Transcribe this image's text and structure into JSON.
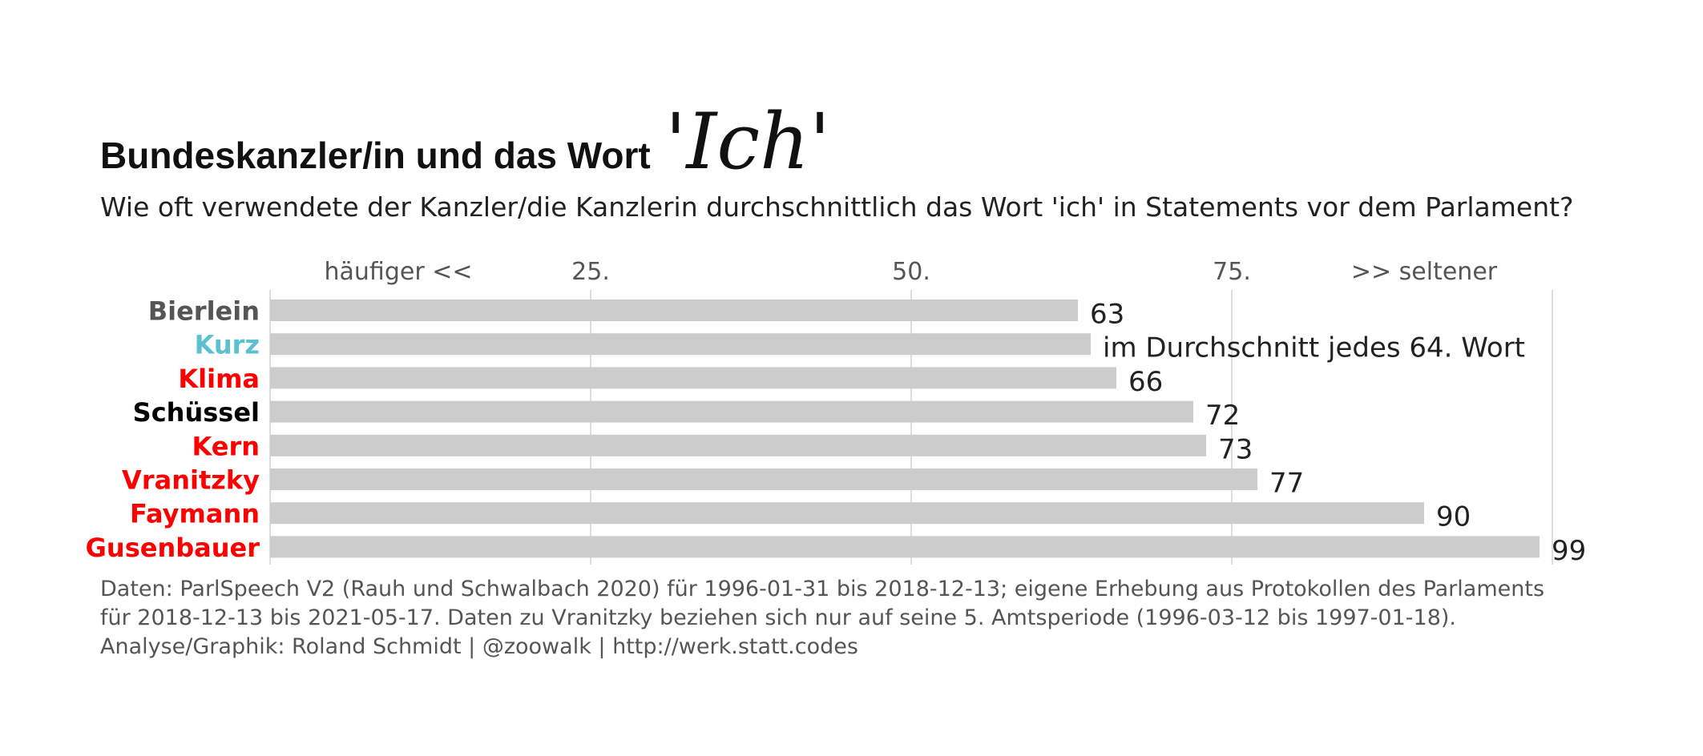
{
  "header": {
    "title": "Bundeskanzler/in und das Wort",
    "title_word": "'Ich'",
    "subtitle": "Wie oft verwendete der Kanzler/die Kanzlerin durchschnittlich das Wort 'ich' in Statements vor dem Parlament?"
  },
  "caption": {
    "line1": "Daten: ParlSpeech V2 (Rauh und Schwalbach 2020) für 1996-01-31 bis 2018-12-13; eigene Erhebung aus Protokollen des Parlaments",
    "line2": "für 2018-12-13 bis 2021-05-17. Daten zu Vranitzky beziehen sich nur auf seine 5. Amtsperiode (1996-03-12 bis 1997-01-18).",
    "line3": "Analyse/Graphik: Roland Schmidt | @zoowalk | http://werk.statt.codes"
  },
  "chart_data": {
    "type": "bar",
    "orientation": "horizontal",
    "categories": [
      "Bierlein",
      "Kurz",
      "Klima",
      "Schüssel",
      "Kern",
      "Vranitzky",
      "Faymann",
      "Gusenbauer"
    ],
    "values": [
      63,
      64,
      66,
      72,
      73,
      77,
      90,
      99
    ],
    "value_labels": [
      "63",
      "im Durchschnitt jedes 64. Wort",
      "66",
      "72",
      "73",
      "77",
      "90",
      "99"
    ],
    "category_colors": [
      "#555555",
      "#5BC0CF",
      "#FF0000",
      "#000000",
      "#FF0000",
      "#FF0000",
      "#FF0000",
      "#FF0000"
    ],
    "bar_color": "#CCCCCC",
    "xlim": [
      0,
      100
    ],
    "ticks": [
      {
        "value": 10,
        "label": "häufiger <<"
      },
      {
        "value": 25,
        "label": "25."
      },
      {
        "value": 50,
        "label": "50."
      },
      {
        "value": 75,
        "label": "75."
      },
      {
        "value": 90,
        "label": ">> seltener"
      }
    ],
    "gridlines": [
      0,
      25,
      50,
      75,
      100
    ],
    "grid": true,
    "axis_position": "top"
  }
}
